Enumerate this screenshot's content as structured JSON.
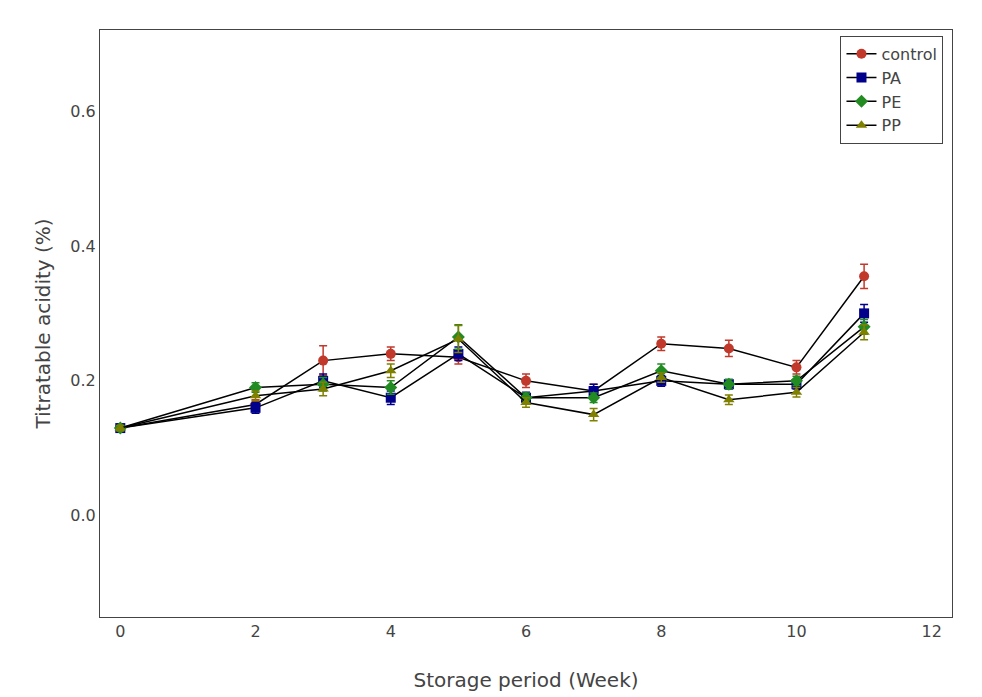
{
  "chart_data": {
    "type": "line",
    "x": [
      0,
      2,
      3,
      4,
      5,
      6,
      7,
      8,
      9,
      10,
      11
    ],
    "series": [
      {
        "name": "control",
        "color": "#c0392b",
        "marker": "circle",
        "values": [
          0.13,
          0.165,
          0.23,
          0.24,
          0.235,
          0.2,
          0.185,
          0.255,
          0.248,
          0.22,
          0.355
        ],
        "yerr": [
          0.004,
          0.007,
          0.022,
          0.01,
          0.01,
          0.01,
          0.01,
          0.01,
          0.012,
          0.01,
          0.018
        ]
      },
      {
        "name": "PA",
        "color": "#00008B",
        "marker": "square",
        "values": [
          0.13,
          0.16,
          0.2,
          0.175,
          0.24,
          0.175,
          0.185,
          0.2,
          0.195,
          0.195,
          0.3
        ],
        "yerr": [
          0.004,
          0.008,
          0.01,
          0.01,
          0.01,
          0.008,
          0.01,
          0.008,
          0.007,
          0.007,
          0.013
        ]
      },
      {
        "name": "PE",
        "color": "#228B22",
        "marker": "diamond",
        "values": [
          0.13,
          0.19,
          0.195,
          0.19,
          0.265,
          0.175,
          0.175,
          0.215,
          0.195,
          0.2,
          0.28
        ],
        "yerr": [
          0.004,
          0.007,
          0.01,
          0.01,
          0.018,
          0.007,
          0.007,
          0.01,
          0.007,
          0.007,
          0.011
        ]
      },
      {
        "name": "PP",
        "color": "#808000",
        "marker": "triangle-up",
        "values": [
          0.13,
          0.178,
          0.188,
          0.215,
          0.262,
          0.168,
          0.15,
          0.205,
          0.172,
          0.183,
          0.272
        ],
        "yerr": [
          0.004,
          0.007,
          0.01,
          0.01,
          0.02,
          0.007,
          0.009,
          0.007,
          0.007,
          0.007,
          0.011
        ]
      }
    ],
    "xlabel": "Storage period (Week)",
    "ylabel": "Titratable acidity (%)",
    "xlim": [
      -0.3,
      12.3
    ],
    "ylim": [
      -0.15,
      0.72
    ],
    "xticks": [
      0,
      2,
      4,
      6,
      8,
      10,
      12
    ],
    "yticks": [
      {
        "value": 0.0,
        "label": "0.0"
      },
      0.2,
      0.4,
      0.6
    ],
    "grid": false,
    "legend": "upper right"
  }
}
